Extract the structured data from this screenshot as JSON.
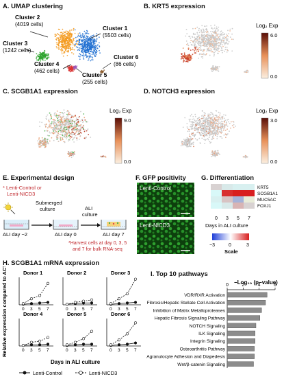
{
  "panels": {
    "a": {
      "title": "A. UMAP clustering"
    },
    "b": {
      "title": "B. KRT5 expression",
      "legend_title": "Log₂ Exp",
      "max": "6.0",
      "min": "0.0"
    },
    "c": {
      "title": "C. SCGB1A1 expression",
      "legend_title": "Log₂ Exp",
      "max": "9.0",
      "min": "0.0"
    },
    "d": {
      "title": "D. NOTCH3 expression",
      "legend_title": "Log₂ Exp",
      "max": "3.0",
      "min": "0.0"
    },
    "e": {
      "title": "E. Experimental design"
    },
    "f": {
      "title": "F. GFP positivity"
    },
    "g": {
      "title": "G. Differentiation"
    },
    "h": {
      "title": "H. SCGB1A1 mRNA expression"
    },
    "i": {
      "title": "I. Top 10 pathways"
    }
  },
  "clusters": [
    {
      "name": "Cluster 1",
      "cells": "(5503 cells)",
      "color": "#1f6fd1"
    },
    {
      "name": "Cluster 2",
      "cells": "(4019 cells)",
      "color": "#f39a1f"
    },
    {
      "name": "Cluster 3",
      "cells": "(1242 cells)",
      "color": "#2ea52e"
    },
    {
      "name": "Cluster 4",
      "cells": "(462 cells)",
      "color": "#d93030"
    },
    {
      "name": "Cluster 5",
      "cells": "(255 cells)",
      "color": "#9b59b6"
    },
    {
      "name": "Cluster 6",
      "cells": "(86 cells)",
      "color": "#8b5a2b"
    }
  ],
  "design": {
    "conditions": [
      "* Lenti-Control or",
      "Lenti-NICD3"
    ],
    "step1": [
      "Submerged",
      "culture"
    ],
    "step2": [
      "ALI",
      "culture"
    ],
    "timepoints": [
      "ALI day −2",
      "ALI day 0",
      "ALI day 7"
    ],
    "note": [
      "*Harvest cells at day 0, 3, 5",
      "and 7 for bulk RNA-seq"
    ]
  },
  "gfp": {
    "labels": [
      "Lenti-Control",
      "Lenti-NICD3"
    ]
  },
  "heatmap": {
    "genes": [
      "KRT5",
      "SCGB1A1",
      "MUC5AC",
      "FOXJ1"
    ],
    "days": [
      "0",
      "3",
      "5",
      "7"
    ],
    "xlabel": "Days in ALI culture",
    "scale_label": "Scale",
    "scale_ticks": [
      "−3",
      "0",
      "3"
    ],
    "values": [
      [
        0.6,
        0.3,
        0.2,
        0.2
      ],
      [
        0.1,
        2.8,
        3.0,
        3.0
      ],
      [
        0.2,
        0.8,
        -1.2,
        -0.3
      ],
      [
        0.1,
        0.3,
        1.0,
        0.6
      ]
    ]
  },
  "chart_data": [
    {
      "type": "line",
      "title": "H. SCGB1A1 mRNA expression",
      "ylabel": "Relative expression compared to ACTB",
      "xlabel": "Days in ALI culture",
      "x": [
        0,
        3,
        5,
        7
      ],
      "legend": [
        "Lenti-Control",
        "Lenti-NICD3"
      ],
      "donors": [
        {
          "name": "Donor 1",
          "series": [
            {
              "name": "Lenti-Control",
              "values": [
                0.01,
                0.02,
                0.03,
                0.04
              ]
            },
            {
              "name": "Lenti-NICD3",
              "values": [
                0.02,
                0.1,
                0.15,
                0.35
              ]
            }
          ]
        },
        {
          "name": "Donor 2",
          "series": [
            {
              "name": "Lenti-Control",
              "values": [
                0.01,
                0.02,
                0.03,
                0.03
              ]
            },
            {
              "name": "Lenti-NICD3",
              "values": [
                0.01,
                0.04,
                0.06,
                0.08
              ]
            }
          ]
        },
        {
          "name": "Donor 3",
          "series": [
            {
              "name": "Lenti-Control",
              "values": [
                0.01,
                0.02,
                0.03,
                0.04
              ]
            },
            {
              "name": "Lenti-NICD3",
              "values": [
                0.02,
                0.1,
                0.18,
                0.42
              ]
            }
          ]
        },
        {
          "name": "Donor 4",
          "series": [
            {
              "name": "Lenti-Control",
              "values": [
                0.01,
                0.02,
                0.02,
                0.03
              ]
            },
            {
              "name": "Lenti-NICD3",
              "values": [
                0.01,
                0.06,
                0.08,
                0.14
              ]
            }
          ]
        },
        {
          "name": "Donor 5",
          "series": [
            {
              "name": "Lenti-Control",
              "values": [
                0.01,
                0.02,
                0.03,
                0.03
              ]
            },
            {
              "name": "Lenti-NICD3",
              "values": [
                0.02,
                0.06,
                0.12,
                0.24
              ]
            }
          ]
        },
        {
          "name": "Donor 6",
          "series": [
            {
              "name": "Lenti-Control",
              "values": [
                0.01,
                0.02,
                0.03,
                0.05
              ]
            },
            {
              "name": "Lenti-NICD3",
              "values": [
                0.02,
                0.1,
                0.2,
                0.38
              ]
            }
          ]
        }
      ]
    },
    {
      "type": "bar",
      "title": "I. Top 10 pathways",
      "xlabel": "−Log₁₀ (p−value)",
      "xticks": [
        "0",
        "2",
        "4",
        "6"
      ],
      "xlim": [
        0,
        6
      ],
      "categories": [
        "VDR/RXR Activation",
        "Hepatic Fibrosis/Hepatic Stellate Cell Activation",
        "Inhibition of Matrix Metalloproteases",
        "Hepatic Fibrosis Signaling Pathway",
        "NOTCH Signaling",
        "ILK Signaling",
        "Integrin Signaling",
        "Osteoarthritis Pathway",
        "Agranulocyte Adhesion and Diapedesis",
        "Wnt/β-catenin Signaling"
      ],
      "values": [
        5.0,
        4.8,
        4.3,
        4.1,
        3.6,
        3.5,
        3.5,
        3.4,
        3.4,
        3.3
      ]
    }
  ]
}
